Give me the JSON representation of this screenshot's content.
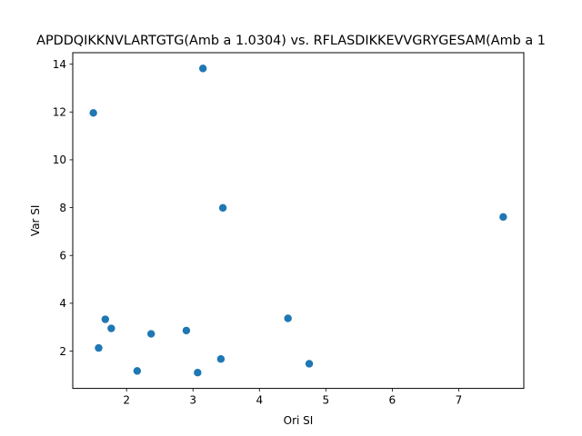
{
  "chart_data": {
    "type": "scatter",
    "title": "APDDQIKKNVLARTGTG(Amb a 1.0304) vs. RFLASDIKKEVVGRYGESAM(Amb a 1",
    "xlabel": "Ori SI",
    "ylabel": "Var SI",
    "xlim": [
      1.19,
      7.98
    ],
    "ylim": [
      0.44,
      14.48
    ],
    "xticks": [
      2,
      3,
      4,
      5,
      6,
      7
    ],
    "yticks": [
      2,
      4,
      6,
      8,
      10,
      12,
      14
    ],
    "grid": false,
    "marker_color": "#1f77b4",
    "points": [
      {
        "x": 1.5,
        "y": 11.96
      },
      {
        "x": 3.15,
        "y": 13.82
      },
      {
        "x": 3.45,
        "y": 7.99
      },
      {
        "x": 7.67,
        "y": 7.61
      },
      {
        "x": 1.68,
        "y": 3.33
      },
      {
        "x": 1.77,
        "y": 2.95
      },
      {
        "x": 1.58,
        "y": 2.13
      },
      {
        "x": 2.37,
        "y": 2.72
      },
      {
        "x": 2.9,
        "y": 2.86
      },
      {
        "x": 4.43,
        "y": 3.37
      },
      {
        "x": 2.16,
        "y": 1.17
      },
      {
        "x": 3.07,
        "y": 1.1
      },
      {
        "x": 3.42,
        "y": 1.67
      },
      {
        "x": 4.75,
        "y": 1.47
      }
    ]
  }
}
